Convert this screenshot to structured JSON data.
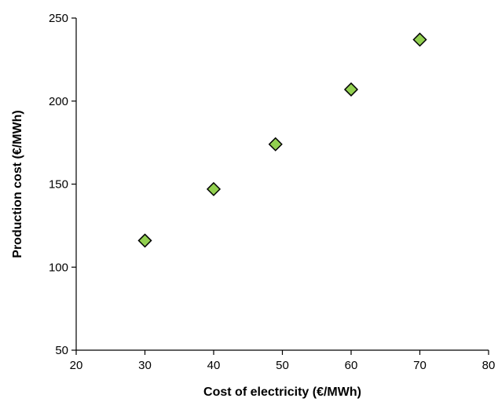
{
  "chart_data": {
    "type": "scatter",
    "title": "",
    "xlabel": "Cost of electricity (€/MWh)",
    "ylabel": "Production cost (€/MWh)",
    "xlim": [
      20,
      80
    ],
    "ylim": [
      50,
      250
    ],
    "xticks": [
      20,
      30,
      40,
      50,
      60,
      70,
      80
    ],
    "yticks": [
      50,
      100,
      150,
      200,
      250
    ],
    "grid": false,
    "legend": "none",
    "marker": "diamond",
    "marker_color": "#92D050",
    "marker_edge_color": "#000000",
    "series": [
      {
        "x": [
          30,
          40,
          49,
          60,
          70
        ],
        "y": [
          116,
          147,
          174,
          207,
          237
        ]
      }
    ]
  }
}
